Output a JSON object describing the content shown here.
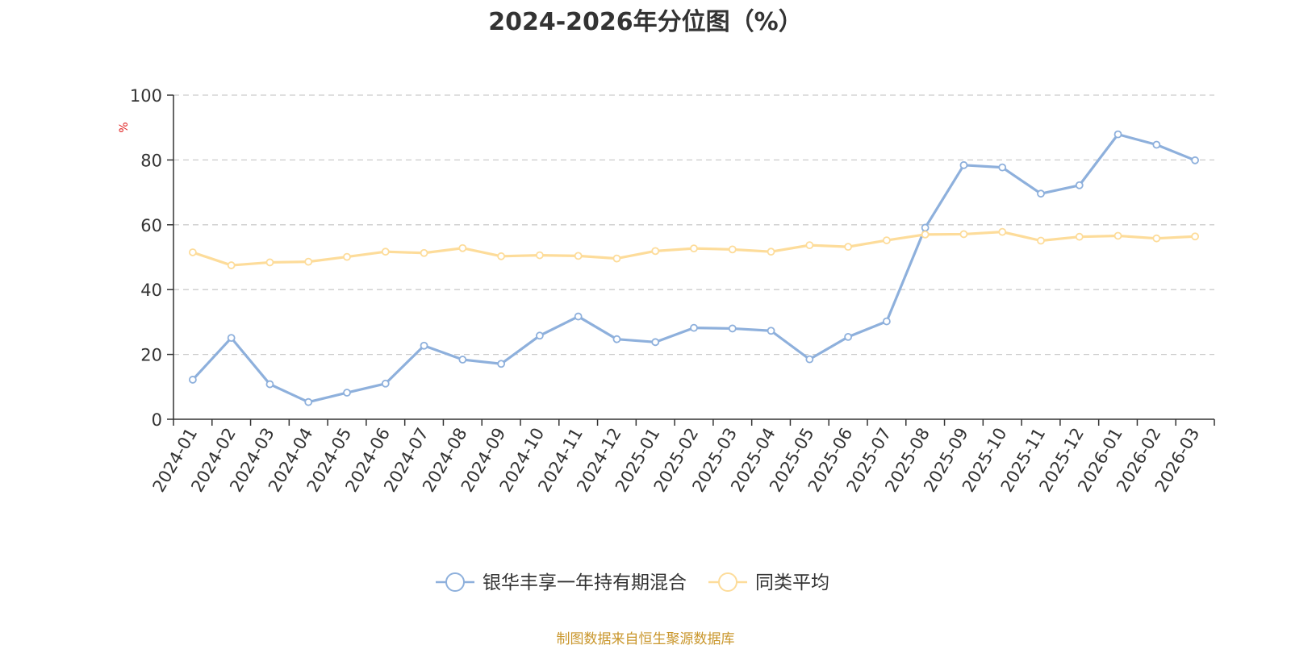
{
  "title": "2024-2026年分位图（%）",
  "source": "制图数据来自恒生聚源数据库",
  "colors": {
    "series1": "#8eb0dc",
    "series2": "#fddc9a",
    "grid": "#cccccc",
    "axis": "#333333",
    "unit": "#e02020",
    "source": "#c9962b"
  },
  "chart_data": {
    "type": "line",
    "title": "2024-2026年分位图（%）",
    "ylabel": "%",
    "ylim": [
      0,
      100
    ],
    "yticks": [
      0,
      20,
      40,
      60,
      80,
      100
    ],
    "grid": true,
    "legend_position": "bottom-center",
    "categories": [
      "2024-01",
      "2024-02",
      "2024-03",
      "2024-04",
      "2024-05",
      "2024-06",
      "2024-07",
      "2024-08",
      "2024-09",
      "2024-10",
      "2024-11",
      "2024-12",
      "2025-01",
      "2025-02",
      "2025-03",
      "2025-04",
      "2025-05",
      "2025-06",
      "2025-07",
      "2025-08",
      "2025-09",
      "2025-10",
      "2025-11",
      "2025-12",
      "2026-01",
      "2026-02",
      "2026-03"
    ],
    "series": [
      {
        "name": "银华丰享一年持有期混合",
        "values": [
          12.2,
          25.1,
          10.8,
          5.3,
          8.2,
          11.0,
          22.7,
          18.4,
          17.1,
          25.8,
          31.7,
          24.7,
          23.8,
          28.2,
          28.0,
          27.3,
          18.5,
          25.4,
          30.2,
          59.1,
          78.4,
          77.7,
          69.6,
          72.2,
          87.9,
          84.7,
          79.9
        ]
      },
      {
        "name": "同类平均",
        "values": [
          51.5,
          47.5,
          48.4,
          48.6,
          50.1,
          51.7,
          51.3,
          52.8,
          50.3,
          50.6,
          50.4,
          49.6,
          51.9,
          52.7,
          52.4,
          51.7,
          53.7,
          53.2,
          55.2,
          57.0,
          57.1,
          57.8,
          55.1,
          56.3,
          56.6,
          55.8,
          56.4
        ]
      }
    ]
  }
}
